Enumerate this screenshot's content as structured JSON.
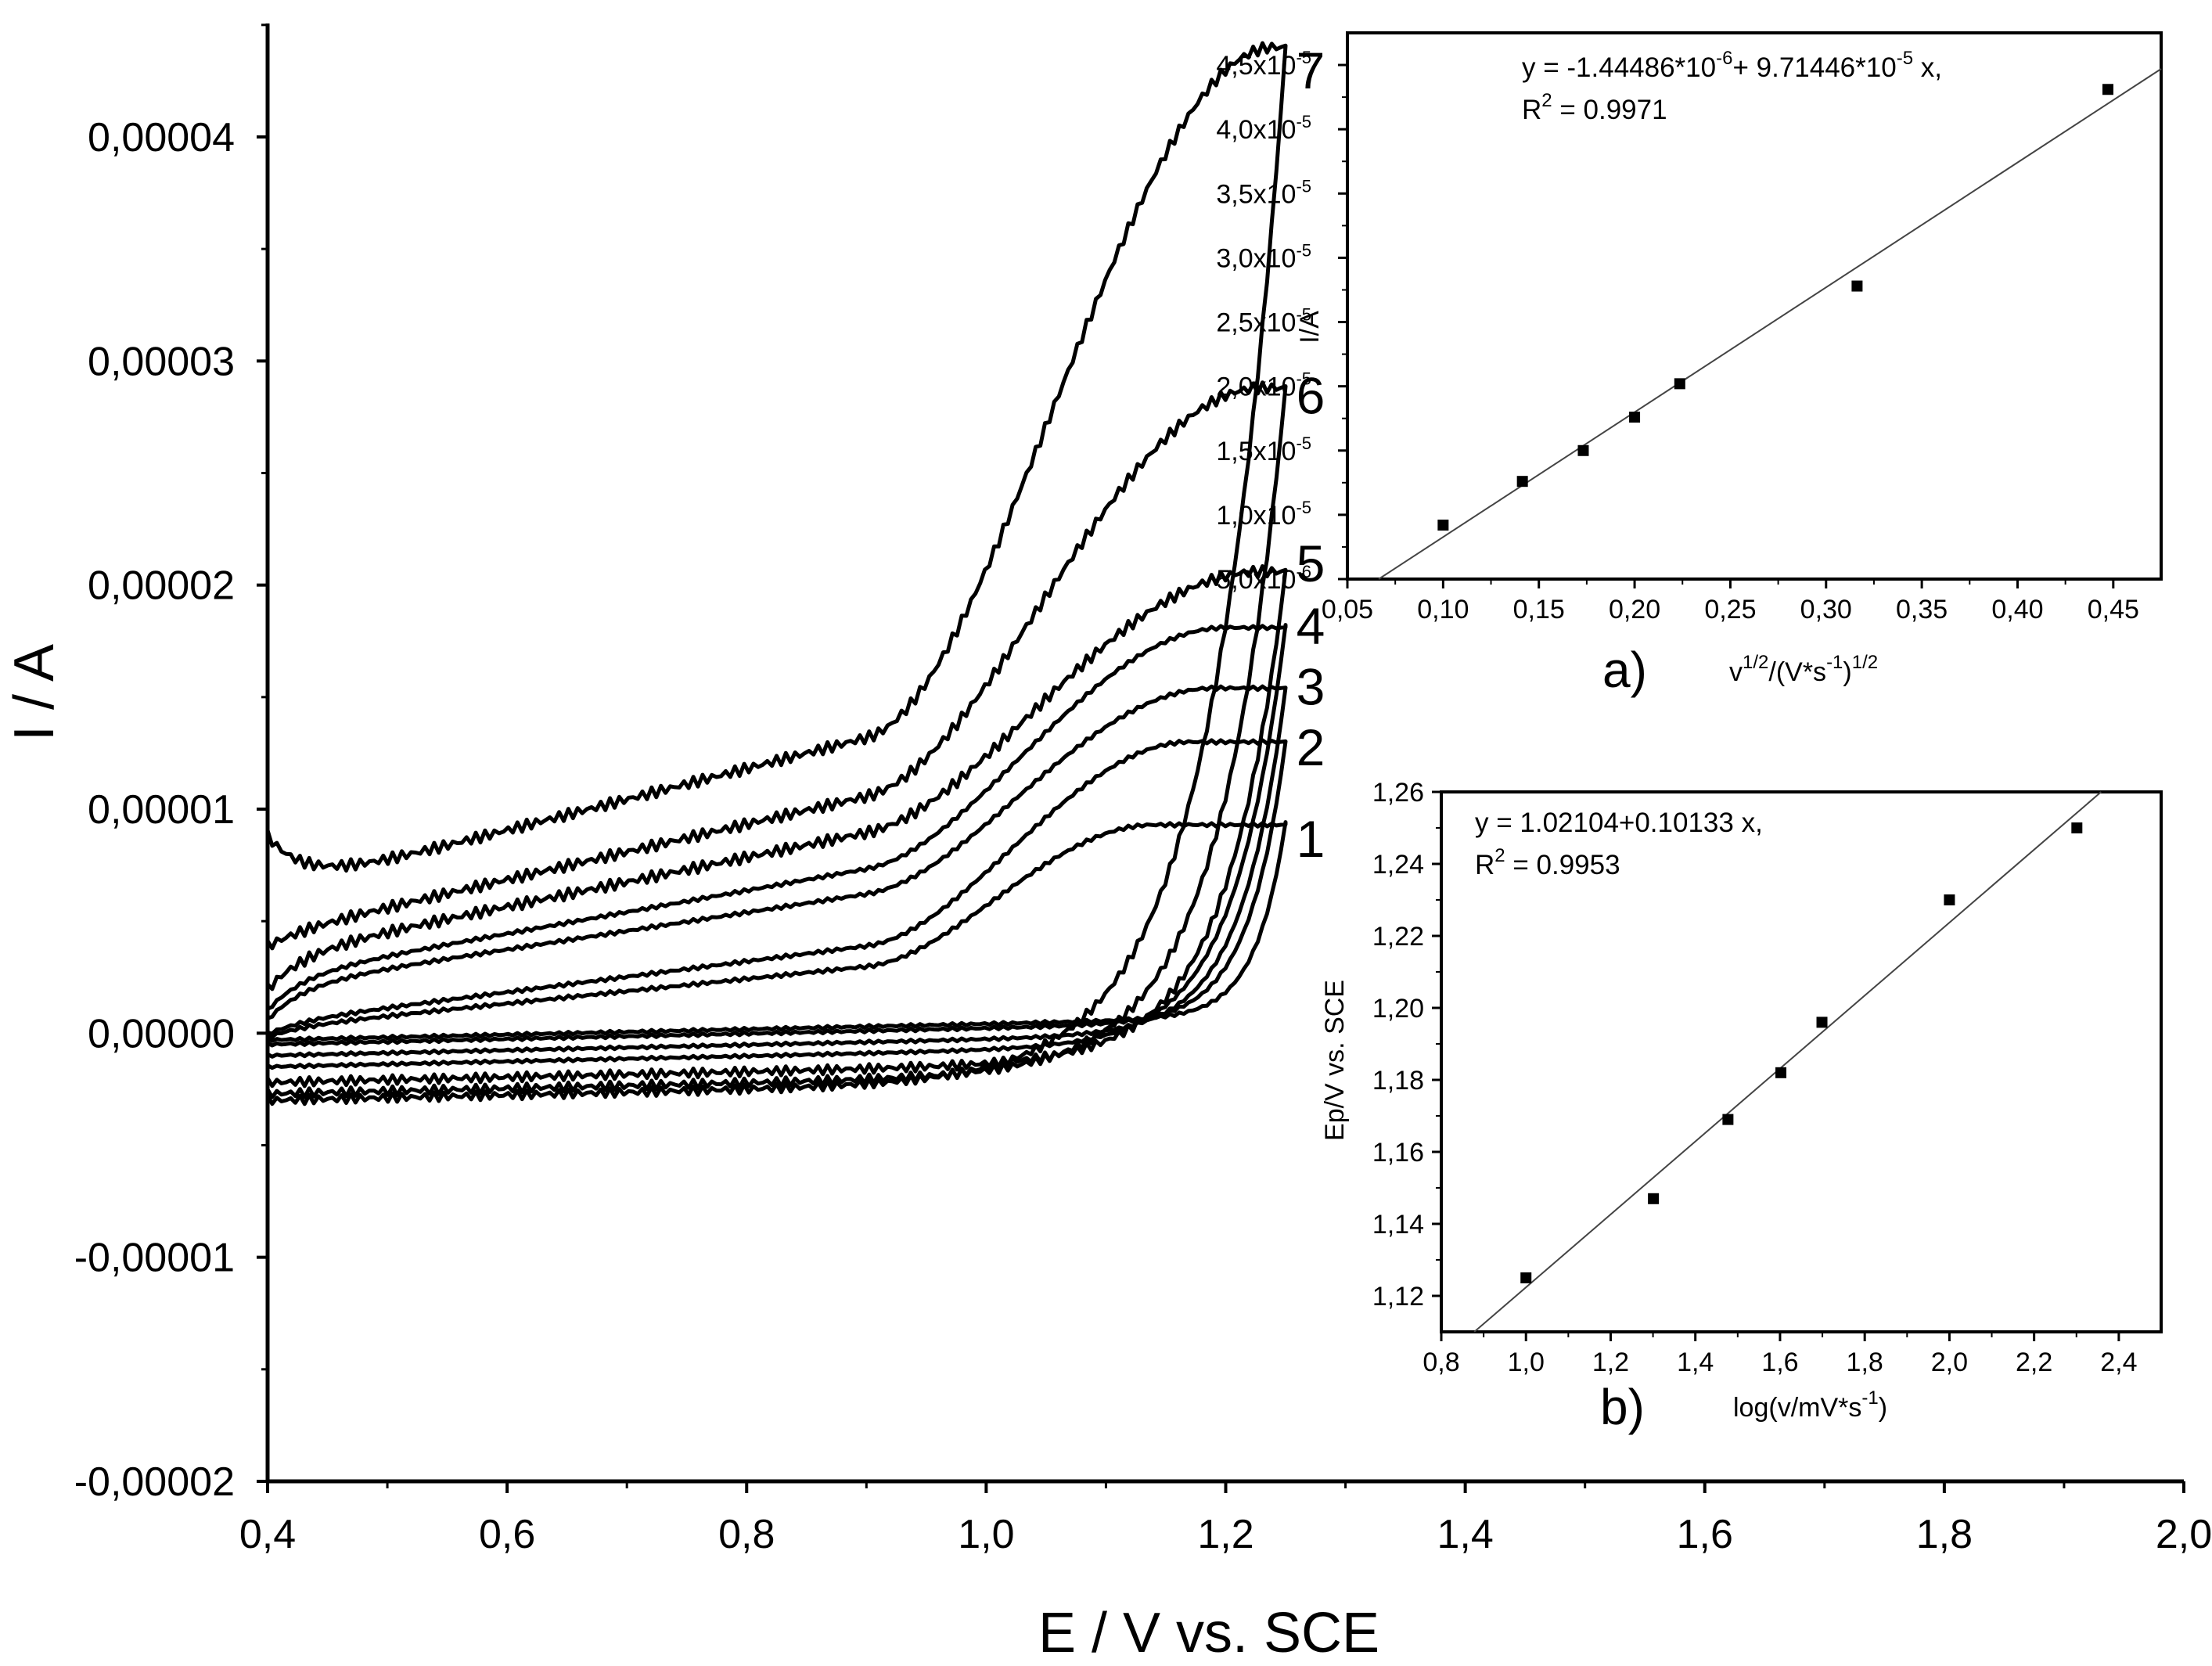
{
  "chart_data": [
    {
      "id": "main",
      "type": "line",
      "title": "",
      "xlabel": "E / V vs. SCE",
      "ylabel": "I / A",
      "xlim": [
        0.4,
        2.0
      ],
      "ylim": [
        -2e-05,
        4.5e-05
      ],
      "xticks": [
        0.4,
        0.6,
        0.8,
        1.0,
        1.2,
        1.4,
        1.6,
        1.8,
        2.0
      ],
      "xtick_labels": [
        "0,4",
        "0,6",
        "0,8",
        "1,0",
        "1,2",
        "1,4",
        "1,6",
        "1,8",
        "2,0"
      ],
      "yticks": [
        -2e-05,
        -1e-05,
        0,
        1e-05,
        2e-05,
        3e-05,
        4e-05
      ],
      "ytick_labels": [
        "-0,00002",
        "-0,00001",
        "0,00000",
        "0,00001",
        "0,00002",
        "0,00003",
        "0,00004"
      ],
      "series": [
        {
          "name": "1",
          "start": 1e-07,
          "mid": 5e-07,
          "end_low": 5e-07,
          "peak": 9.3e-06,
          "peak_e": 1.14,
          "end_i": 9.4e-06,
          "rev_low": -3e-07,
          "rev_e": 1.25,
          "label_i": 8.7e-06
        },
        {
          "name": "2",
          "start": 3e-07,
          "mid": 8e-07,
          "end_low": 8e-07,
          "peak": 1.3e-05,
          "peak_e": 1.17,
          "end_i": 1.3e-05,
          "rev_low": -5e-07,
          "rev_e": 1.25,
          "label_i": 1.28e-05
        },
        {
          "name": "3",
          "start": 1e-06,
          "mid": 2.5e-06,
          "end_low": 2.5e-06,
          "peak": 1.54e-05,
          "peak_e": 1.19,
          "end_i": 1.54e-05,
          "rev_low": -1e-06,
          "rev_e": 1.25,
          "label_i": 1.55e-05
        },
        {
          "name": "4",
          "start": 1.5e-06,
          "mid": 3e-06,
          "end_low": 3e-06,
          "peak": 1.81e-05,
          "peak_e": 1.2,
          "end_i": 1.82e-05,
          "rev_low": -1.5e-06,
          "rev_e": 1.25,
          "label_i": 1.82e-05
        },
        {
          "name": "5",
          "start": 2.5e-06,
          "mid": 4e-06,
          "end_low": 4e-06,
          "peak": 2.06e-05,
          "peak_e": 1.23,
          "end_i": 2.06e-05,
          "rev_low": -2.2e-06,
          "rev_e": 1.25,
          "label_i": 2.1e-05
        },
        {
          "name": "6",
          "start": 4.5e-06,
          "mid": 5e-06,
          "end_low": 5e-06,
          "peak": 2.88e-05,
          "peak_e": 1.23,
          "end_i": 2.88e-05,
          "rev_low": -2.7e-06,
          "rev_e": 1.25,
          "label_i": 2.85e-05
        },
        {
          "name": "7",
          "start": 9.5e-06,
          "mid": 7e-06,
          "end_low": 7e-06,
          "peak": 4.4e-05,
          "peak_e": 1.24,
          "end_i": 4.4e-05,
          "rev_low": -3e-06,
          "rev_e": 1.25,
          "label_i": 4.3e-05
        }
      ]
    },
    {
      "id": "inset_a",
      "type": "scatter",
      "panel_label": "a)",
      "xlabel": "v",
      "xlabel_sup1": "1/2",
      "xlabel_mid": "/(V*s",
      "xlabel_sup2": "-1",
      "xlabel_end": ")",
      "xlabel_sup3": "1/2",
      "ylabel": "I/A",
      "xlim": [
        0.05,
        0.475
      ],
      "ylim": [
        5e-06,
        4.75e-05
      ],
      "xticks": [
        0.05,
        0.1,
        0.15,
        0.2,
        0.25,
        0.3,
        0.35,
        0.4,
        0.45
      ],
      "xtick_labels": [
        "0,05",
        "0,10",
        "0,15",
        "0,20",
        "0,25",
        "0,30",
        "0,35",
        "0,40",
        "0,45"
      ],
      "yticks": [
        5e-06,
        1e-05,
        1.5e-05,
        2e-05,
        2.5e-05,
        3e-05,
        3.5e-05,
        4e-05,
        4.5e-05
      ],
      "ytick_mantissa": [
        "5,0x10",
        "1,0x10",
        "1,5x10",
        "2,0x10",
        "2,5x10",
        "3,0x10",
        "3,5x10",
        "4,0x10",
        "4,5x10"
      ],
      "ytick_exp": [
        "-6",
        "-5",
        "-5",
        "-5",
        "-5",
        "-5",
        "-5",
        "-5",
        "-5"
      ],
      "x": [
        0.1,
        0.1414,
        0.1732,
        0.2,
        0.2236,
        0.3162,
        0.4472
      ],
      "y": [
        9.2e-06,
        1.26e-05,
        1.5e-05,
        1.76e-05,
        2.02e-05,
        2.78e-05,
        4.31e-05
      ],
      "fit": {
        "intercept": -1.44486e-06,
        "slope": 9.71446e-05
      },
      "equation_line1_a": "y = -1.44486*10",
      "equation_line1_a_exp": "-6",
      "equation_line1_b": "+ 9.71446*10",
      "equation_line1_b_exp": "-5",
      "equation_line1_c": " x,",
      "r2_prefix": "R",
      "r2_exp": "2",
      "r2_value": " = 0.9971"
    },
    {
      "id": "inset_b",
      "type": "scatter",
      "panel_label": "b)",
      "xlabel": "log(v/mV*s",
      "xlabel_sup": "-1",
      "xlabel_end": ")",
      "ylabel": "Ep/V vs. SCE",
      "xlim": [
        0.8,
        2.5
      ],
      "ylim": [
        1.11,
        1.26
      ],
      "xticks": [
        0.8,
        1.0,
        1.2,
        1.4,
        1.6,
        1.8,
        2.0,
        2.2,
        2.4
      ],
      "xtick_labels": [
        "0,8",
        "1,0",
        "1,2",
        "1,4",
        "1,6",
        "1,8",
        "2,0",
        "2,2",
        "2,4"
      ],
      "yticks": [
        1.12,
        1.14,
        1.16,
        1.18,
        1.2,
        1.22,
        1.24,
        1.26
      ],
      "ytick_labels": [
        "1,12",
        "1,14",
        "1,16",
        "1,18",
        "1,20",
        "1,22",
        "1,24",
        "1,26"
      ],
      "x": [
        1.0,
        1.301,
        1.477,
        1.602,
        1.699,
        2.0,
        2.301
      ],
      "y": [
        1.125,
        1.147,
        1.169,
        1.182,
        1.196,
        1.23,
        1.25
      ],
      "fit": {
        "intercept": 1.02104,
        "slope": 0.10133
      },
      "equation_line1": "y = 1.02104+0.10133 x,",
      "r2_prefix": "R",
      "r2_exp": "2",
      "r2_value": " = 0.9953"
    }
  ]
}
